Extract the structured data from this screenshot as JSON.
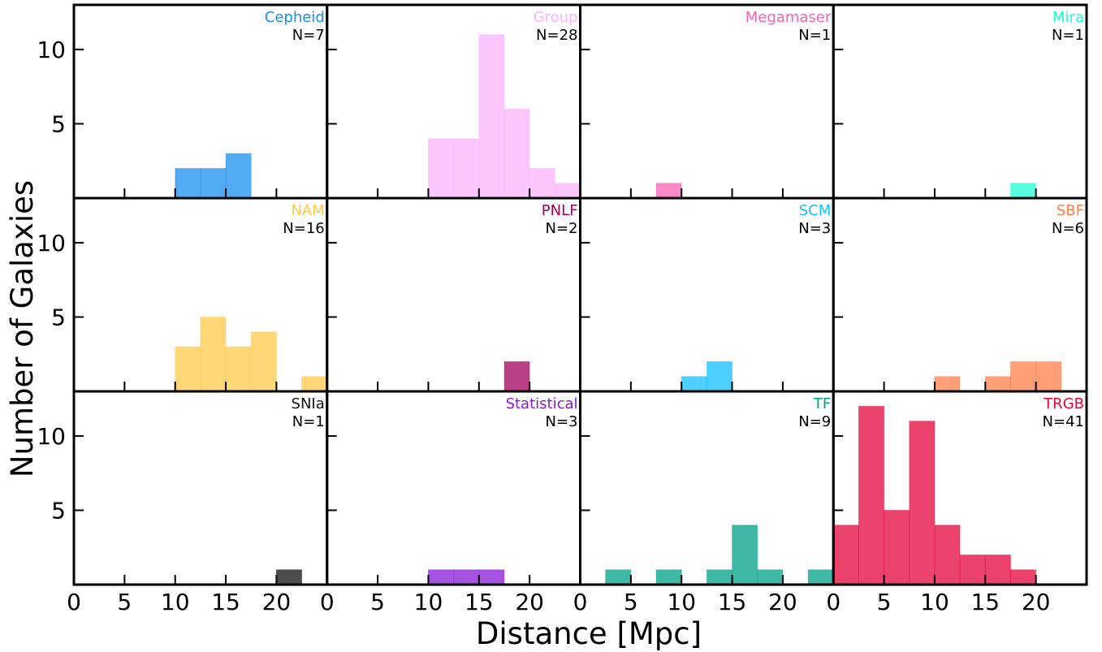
{
  "chart_data": {
    "type": "bar",
    "layout": "3x4 grid of histograms with shared axes",
    "xlabel": "Distance [Mpc]",
    "ylabel": "Number of Galaxies",
    "xlim": [
      0,
      25
    ],
    "ylim": [
      0,
      13
    ],
    "bin_width": 2.5,
    "x_ticks": [
      0,
      5,
      10,
      15,
      20
    ],
    "y_ticks": [
      5,
      10
    ],
    "panels": [
      {
        "name": "Cepheid",
        "count_label": "N=7",
        "color": "#1a8fef",
        "bins": [
          {
            "x0": 10,
            "x1": 12.5,
            "count": 2
          },
          {
            "x0": 12.5,
            "x1": 15,
            "count": 2
          },
          {
            "x0": 15,
            "x1": 17.5,
            "count": 3
          }
        ]
      },
      {
        "name": "Group",
        "count_label": "N=28",
        "color": "#fbb3fb",
        "bins": [
          {
            "x0": 10,
            "x1": 12.5,
            "count": 4
          },
          {
            "x0": 12.5,
            "x1": 15,
            "count": 4
          },
          {
            "x0": 15,
            "x1": 17.5,
            "count": 11
          },
          {
            "x0": 17.5,
            "x1": 20,
            "count": 6
          },
          {
            "x0": 20,
            "x1": 22.5,
            "count": 2
          },
          {
            "x0": 22.5,
            "x1": 25,
            "count": 1
          }
        ]
      },
      {
        "name": "Megamaser",
        "count_label": "N=1",
        "color": "#f763b5",
        "bins": [
          {
            "x0": 7.5,
            "x1": 10,
            "count": 1
          }
        ]
      },
      {
        "name": "Mira",
        "count_label": "N=1",
        "color": "#1fffd6",
        "bins": [
          {
            "x0": 17.5,
            "x1": 20,
            "count": 1
          }
        ]
      },
      {
        "name": "NAM",
        "count_label": "N=16",
        "color": "#ffc94a",
        "bins": [
          {
            "x0": 10,
            "x1": 12.5,
            "count": 3
          },
          {
            "x0": 12.5,
            "x1": 15,
            "count": 5
          },
          {
            "x0": 15,
            "x1": 17.5,
            "count": 3
          },
          {
            "x0": 17.5,
            "x1": 20,
            "count": 4
          },
          {
            "x0": 22.5,
            "x1": 25,
            "count": 1
          }
        ]
      },
      {
        "name": "PNLF",
        "count_label": "N=2",
        "color": "#a3005e",
        "bins": [
          {
            "x0": 17.5,
            "x1": 20,
            "count": 2
          }
        ]
      },
      {
        "name": "SCM",
        "count_label": "N=3",
        "color": "#12bfff",
        "bins": [
          {
            "x0": 10,
            "x1": 12.5,
            "count": 1
          },
          {
            "x0": 12.5,
            "x1": 15,
            "count": 2
          }
        ]
      },
      {
        "name": "SBF",
        "count_label": "N=6",
        "color": "#ff7f4a",
        "bins": [
          {
            "x0": 10,
            "x1": 12.5,
            "count": 1
          },
          {
            "x0": 15,
            "x1": 17.5,
            "count": 1
          },
          {
            "x0": 17.5,
            "x1": 20,
            "count": 2
          },
          {
            "x0": 20,
            "x1": 22.5,
            "count": 2
          }
        ]
      },
      {
        "name": "SNIa",
        "count_label": "N=1",
        "color": "#111111",
        "bins": [
          {
            "x0": 20,
            "x1": 22.5,
            "count": 1
          }
        ]
      },
      {
        "name": "Statistical",
        "count_label": "N=3",
        "color": "#8a18d6",
        "bins": [
          {
            "x0": 10,
            "x1": 12.5,
            "count": 1
          },
          {
            "x0": 12.5,
            "x1": 15,
            "count": 1
          },
          {
            "x0": 15,
            "x1": 17.5,
            "count": 1
          }
        ]
      },
      {
        "name": "TF",
        "count_label": "N=9",
        "color": "#00a088",
        "bins": [
          {
            "x0": 2.5,
            "x1": 5,
            "count": 1
          },
          {
            "x0": 7.5,
            "x1": 10,
            "count": 1
          },
          {
            "x0": 12.5,
            "x1": 15,
            "count": 1
          },
          {
            "x0": 15,
            "x1": 17.5,
            "count": 4
          },
          {
            "x0": 17.5,
            "x1": 20,
            "count": 1
          },
          {
            "x0": 22.5,
            "x1": 25,
            "count": 1
          }
        ]
      },
      {
        "name": "TRGB",
        "count_label": "N=41",
        "color": "#e3063b",
        "bins": [
          {
            "x0": 0,
            "x1": 2.5,
            "count": 4
          },
          {
            "x0": 2.5,
            "x1": 5,
            "count": 12
          },
          {
            "x0": 5,
            "x1": 7.5,
            "count": 5
          },
          {
            "x0": 7.5,
            "x1": 10,
            "count": 11
          },
          {
            "x0": 10,
            "x1": 12.5,
            "count": 4
          },
          {
            "x0": 12.5,
            "x1": 15,
            "count": 2
          },
          {
            "x0": 15,
            "x1": 17.5,
            "count": 2
          },
          {
            "x0": 17.5,
            "x1": 20,
            "count": 1
          }
        ]
      }
    ]
  }
}
